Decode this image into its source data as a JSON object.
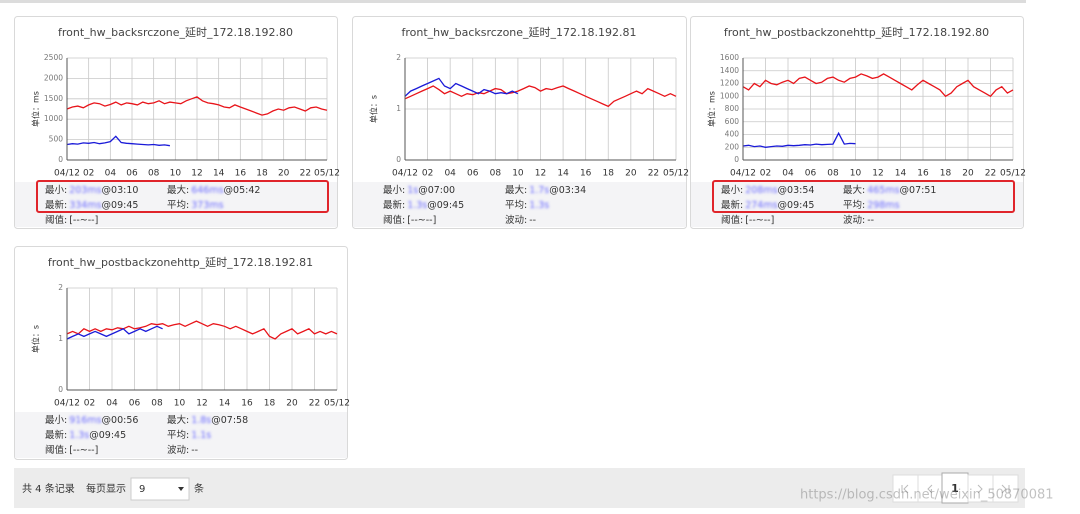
{
  "chart_data": [
    {
      "type": "line",
      "title": "front_hw_backsrczone_延时_172.18.192.80",
      "y_label": "单位：ms",
      "xlim": [
        0,
        24
      ],
      "xticks": [
        {
          "value": 0,
          "label": "04/12"
        },
        {
          "value": 2,
          "label": "02"
        },
        {
          "value": 4,
          "label": "04"
        },
        {
          "value": 6,
          "label": "06"
        },
        {
          "value": 8,
          "label": "08"
        },
        10,
        12,
        14,
        16,
        18,
        20,
        22,
        {
          "value": 24,
          "label": "05/12"
        }
      ],
      "ylim": [
        0,
        2500
      ],
      "yticks": [
        0,
        500,
        1000,
        1500,
        2000,
        2500
      ],
      "grid": true,
      "series": [
        {
          "color": "#e8141a",
          "x": [
            0,
            0.5,
            1,
            1.5,
            2,
            2.5,
            3,
            3.5,
            4,
            4.5,
            5,
            5.5,
            6,
            6.5,
            7,
            7.5,
            8,
            8.5,
            9,
            9.5,
            10,
            10.5,
            11,
            11.5,
            12,
            12.5,
            13,
            13.5,
            14,
            14.5,
            15,
            15.5,
            16,
            16.5,
            17,
            17.5,
            18,
            18.5,
            19,
            19.5,
            20,
            20.5,
            21,
            21.5,
            22,
            22.5,
            23,
            23.5,
            24
          ],
          "values": [
            1250,
            1300,
            1320,
            1280,
            1350,
            1400,
            1380,
            1320,
            1360,
            1420,
            1350,
            1400,
            1380,
            1350,
            1420,
            1380,
            1400,
            1450,
            1380,
            1420,
            1400,
            1380,
            1450,
            1500,
            1550,
            1450,
            1400,
            1380,
            1350,
            1300,
            1280,
            1350,
            1300,
            1250,
            1200,
            1150,
            1100,
            1130,
            1200,
            1250,
            1220,
            1280,
            1300,
            1250,
            1200,
            1280,
            1300,
            1250,
            1220
          ]
        },
        {
          "color": "#1a1ad8",
          "x": [
            0,
            0.5,
            1,
            1.5,
            2,
            2.5,
            3,
            3.5,
            4,
            4.5,
            5,
            5.5,
            6,
            6.5,
            7,
            7.5,
            8,
            8.5,
            9,
            9.5
          ],
          "values": [
            380,
            400,
            390,
            420,
            410,
            430,
            400,
            420,
            450,
            580,
            430,
            410,
            400,
            390,
            380,
            370,
            380,
            360,
            370,
            350
          ]
        }
      ]
    },
    {
      "type": "line",
      "title": "front_hw_backsrczone_延时_172.18.192.81",
      "y_label": "单位：s",
      "xlim": [
        0,
        24
      ],
      "xticks": [
        {
          "value": 0,
          "label": "04/12"
        },
        {
          "value": 2,
          "label": "02"
        },
        {
          "value": 4,
          "label": "04"
        },
        {
          "value": 6,
          "label": "06"
        },
        {
          "value": 8,
          "label": "08"
        },
        10,
        12,
        14,
        16,
        18,
        20,
        22,
        {
          "value": 24,
          "label": "05/12"
        }
      ],
      "ylim": [
        0,
        2
      ],
      "yticks": [
        0,
        1,
        2
      ],
      "grid": true,
      "series": [
        {
          "color": "#e8141a",
          "x": [
            0,
            0.5,
            1,
            1.5,
            2,
            2.5,
            3,
            3.5,
            4,
            4.5,
            5,
            5.5,
            6,
            6.5,
            7,
            7.5,
            8,
            8.5,
            9,
            9.5,
            10,
            10.5,
            11,
            11.5,
            12,
            12.5,
            13,
            13.5,
            14,
            14.5,
            15,
            15.5,
            16,
            16.5,
            17,
            17.5,
            18,
            18.5,
            19,
            19.5,
            20,
            20.5,
            21,
            21.5,
            22,
            22.5,
            23,
            23.5,
            24
          ],
          "values": [
            1.2,
            1.25,
            1.3,
            1.35,
            1.4,
            1.45,
            1.38,
            1.3,
            1.35,
            1.3,
            1.25,
            1.3,
            1.28,
            1.32,
            1.3,
            1.35,
            1.4,
            1.38,
            1.3,
            1.32,
            1.35,
            1.4,
            1.45,
            1.42,
            1.35,
            1.4,
            1.38,
            1.42,
            1.45,
            1.4,
            1.35,
            1.3,
            1.25,
            1.2,
            1.15,
            1.1,
            1.05,
            1.15,
            1.2,
            1.25,
            1.3,
            1.35,
            1.3,
            1.4,
            1.35,
            1.3,
            1.25,
            1.3,
            1.25
          ]
        },
        {
          "color": "#1a1ad8",
          "x": [
            0,
            0.5,
            1,
            1.5,
            2,
            2.5,
            3,
            3.5,
            4,
            4.5,
            5,
            5.5,
            6,
            6.5,
            7,
            7.5,
            8,
            8.5,
            9,
            9.5,
            10
          ],
          "values": [
            1.25,
            1.35,
            1.4,
            1.45,
            1.5,
            1.55,
            1.6,
            1.45,
            1.4,
            1.5,
            1.45,
            1.4,
            1.35,
            1.3,
            1.38,
            1.35,
            1.3,
            1.32,
            1.3,
            1.35,
            1.3
          ]
        }
      ]
    },
    {
      "type": "line",
      "title": "front_hw_postbackzonehttp_延时_172.18.192.80",
      "y_label": "单位：ms",
      "xlim": [
        0,
        24
      ],
      "xticks": [
        {
          "value": 0,
          "label": "04/12"
        },
        {
          "value": 2,
          "label": "02"
        },
        {
          "value": 4,
          "label": "04"
        },
        {
          "value": 6,
          "label": "06"
        },
        {
          "value": 8,
          "label": "08"
        },
        10,
        12,
        14,
        16,
        18,
        20,
        22,
        {
          "value": 24,
          "label": "05/12"
        }
      ],
      "ylim": [
        0,
        1600
      ],
      "yticks": [
        0,
        200,
        400,
        600,
        800,
        1000,
        1200,
        1400,
        1600
      ],
      "grid": true,
      "series": [
        {
          "color": "#e8141a",
          "x": [
            0,
            0.5,
            1,
            1.5,
            2,
            2.5,
            3,
            3.5,
            4,
            4.5,
            5,
            5.5,
            6,
            6.5,
            7,
            7.5,
            8,
            8.5,
            9,
            9.5,
            10,
            10.5,
            11,
            11.5,
            12,
            12.5,
            13,
            13.5,
            14,
            14.5,
            15,
            15.5,
            16,
            16.5,
            17,
            17.5,
            18,
            18.5,
            19,
            19.5,
            20,
            20.5,
            21,
            21.5,
            22,
            22.5,
            23,
            23.5,
            24
          ],
          "values": [
            1150,
            1100,
            1200,
            1150,
            1250,
            1200,
            1180,
            1220,
            1250,
            1200,
            1280,
            1300,
            1250,
            1200,
            1220,
            1280,
            1300,
            1250,
            1220,
            1280,
            1300,
            1350,
            1320,
            1280,
            1300,
            1350,
            1300,
            1250,
            1200,
            1150,
            1100,
            1180,
            1250,
            1200,
            1150,
            1100,
            1000,
            1050,
            1150,
            1200,
            1250,
            1150,
            1100,
            1050,
            1000,
            1100,
            1150,
            1050,
            1100
          ]
        },
        {
          "color": "#1a1ad8",
          "x": [
            0,
            0.5,
            1,
            1.5,
            2,
            2.5,
            3,
            3.5,
            4,
            4.5,
            5,
            5.5,
            6,
            6.5,
            7,
            7.5,
            8,
            8.5,
            9,
            9.5,
            10
          ],
          "values": [
            220,
            230,
            210,
            220,
            200,
            210,
            220,
            215,
            230,
            225,
            230,
            240,
            235,
            250,
            240,
            245,
            250,
            420,
            250,
            260,
            255
          ]
        }
      ]
    },
    {
      "type": "line",
      "title": "front_hw_postbackzonehttp_延时_172.18.192.81",
      "y_label": "单位：s",
      "xlim": [
        0,
        24
      ],
      "xticks": [
        {
          "value": 0,
          "label": "04/12"
        },
        {
          "value": 2,
          "label": "02"
        },
        {
          "value": 4,
          "label": "04"
        },
        {
          "value": 6,
          "label": "06"
        },
        {
          "value": 8,
          "label": "08"
        },
        10,
        12,
        14,
        16,
        18,
        20,
        22,
        {
          "value": 24,
          "label": "05/12"
        }
      ],
      "ylim": [
        0,
        2
      ],
      "yticks": [
        0,
        1,
        2
      ],
      "grid": true,
      "series": [
        {
          "color": "#e8141a",
          "x": [
            0,
            0.5,
            1,
            1.5,
            2,
            2.5,
            3,
            3.5,
            4,
            4.5,
            5,
            5.5,
            6,
            6.5,
            7,
            7.5,
            8,
            8.5,
            9,
            9.5,
            10,
            10.5,
            11,
            11.5,
            12,
            12.5,
            13,
            13.5,
            14,
            14.5,
            15,
            15.5,
            16,
            16.5,
            17,
            17.5,
            18,
            18.5,
            19,
            19.5,
            20,
            20.5,
            21,
            21.5,
            22,
            22.5,
            23,
            23.5,
            24
          ],
          "values": [
            1.1,
            1.15,
            1.1,
            1.2,
            1.15,
            1.2,
            1.15,
            1.2,
            1.18,
            1.22,
            1.2,
            1.25,
            1.2,
            1.22,
            1.25,
            1.3,
            1.28,
            1.3,
            1.25,
            1.28,
            1.3,
            1.25,
            1.3,
            1.35,
            1.3,
            1.25,
            1.3,
            1.28,
            1.25,
            1.2,
            1.25,
            1.2,
            1.15,
            1.1,
            1.15,
            1.2,
            1.05,
            1.0,
            1.1,
            1.15,
            1.2,
            1.1,
            1.15,
            1.2,
            1.1,
            1.15,
            1.1,
            1.15,
            1.1
          ]
        },
        {
          "color": "#1a1ad8",
          "x": [
            0,
            0.5,
            1,
            1.5,
            2,
            2.5,
            3,
            3.5,
            4,
            4.5,
            5,
            5.5,
            6,
            6.5,
            7,
            7.5,
            8,
            8.5
          ],
          "values": [
            1.0,
            1.05,
            1.1,
            1.05,
            1.1,
            1.15,
            1.1,
            1.05,
            1.1,
            1.15,
            1.2,
            1.1,
            1.15,
            1.2,
            1.15,
            1.2,
            1.25,
            1.2
          ]
        }
      ]
    }
  ],
  "panels": [
    {
      "highlight": true,
      "rows": [
        [
          {
            "label": "最小:",
            "value": "203ms",
            "time": "@03:10"
          },
          {
            "label": "最大:",
            "value": "646ms",
            "time": "@05:42"
          }
        ],
        [
          {
            "label": "最新:",
            "value": "334ms",
            "time": "@09:45"
          },
          {
            "label": "平均:",
            "value": "373ms"
          }
        ],
        [
          {
            "label": "阈值:",
            "value": "[--~--]"
          }
        ]
      ]
    },
    {
      "highlight": false,
      "rows": [
        [
          {
            "label": "最小:",
            "value": "1s",
            "time": "@07:00"
          },
          {
            "label": "最大:",
            "value": "1.7s",
            "time": "@03:34"
          }
        ],
        [
          {
            "label": "最新:",
            "value": "1.3s",
            "time": "@09:45"
          },
          {
            "label": "平均:",
            "value": "1.3s"
          }
        ],
        [
          {
            "label": "阈值:",
            "value": "[--~--]"
          },
          {
            "label": "波动:",
            "value": "--"
          }
        ]
      ]
    },
    {
      "highlight": true,
      "rows": [
        [
          {
            "label": "最小:",
            "value": "208ms",
            "time": "@03:54"
          },
          {
            "label": "最大:",
            "value": "465ms",
            "time": "@07:51"
          }
        ],
        [
          {
            "label": "最新:",
            "value": "274ms",
            "time": "@09:45"
          },
          {
            "label": "平均:",
            "value": "298ms"
          }
        ],
        [
          {
            "label": "阈值:",
            "value": "[--~--]"
          },
          {
            "label": "波动:",
            "value": "--"
          }
        ]
      ]
    },
    {
      "highlight": false,
      "rows": [
        [
          {
            "label": "最小:",
            "value": "916ms",
            "time": "@00:56"
          },
          {
            "label": "最大:",
            "value": "1.8s",
            "time": "@07:58"
          }
        ],
        [
          {
            "label": "最新:",
            "value": "1.3s",
            "time": "@09:45"
          },
          {
            "label": "平均:",
            "value": "1.1s"
          }
        ],
        [
          {
            "label": "阈值:",
            "value": "[--~--]"
          },
          {
            "label": "波动:",
            "value": "--"
          }
        ]
      ]
    }
  ],
  "pagination": {
    "total": "共 4 条记录",
    "per_page_label": "每页显示",
    "per_page": "9",
    "unit": "条",
    "current": "1"
  },
  "watermark": "https://blog.csdn.net/weixin_50870081"
}
